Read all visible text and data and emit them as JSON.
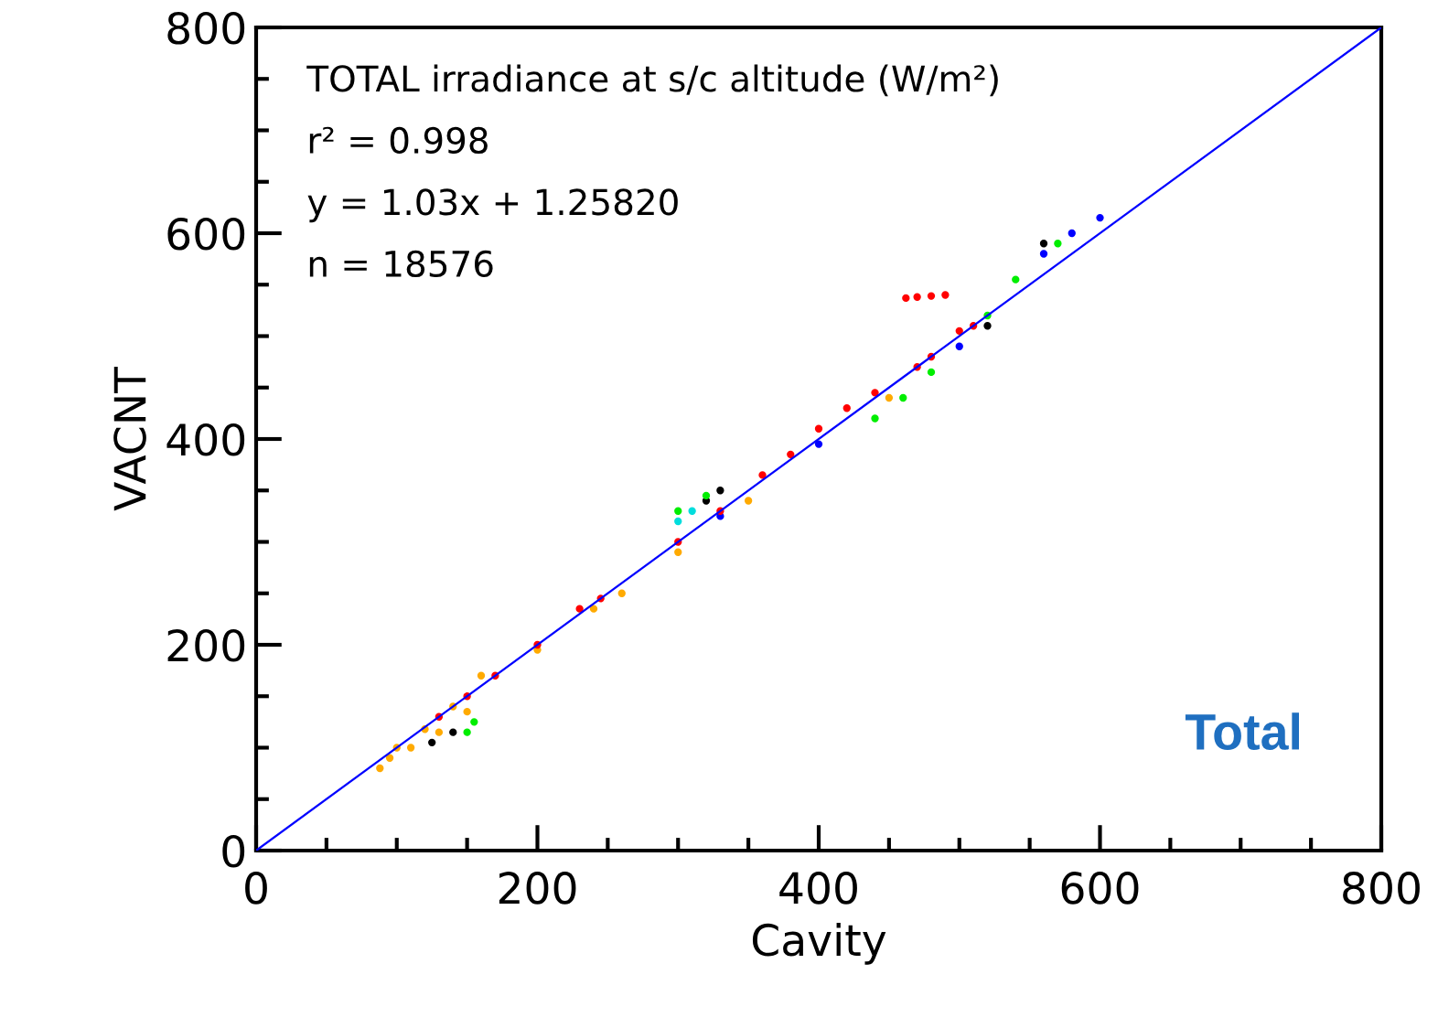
{
  "chart_data": {
    "type": "scatter",
    "xlabel": "Cavity",
    "ylabel": "VACNT",
    "xlim": [
      0,
      800
    ],
    "ylim": [
      0,
      800
    ],
    "xticks": [
      0,
      200,
      400,
      600,
      800
    ],
    "yticks": [
      0,
      200,
      400,
      600,
      800
    ],
    "grid": false,
    "legend": false,
    "marker": "circle",
    "annotations": [
      "TOTAL irradiance at s/c altitude (W/m²)",
      "r² = 0.998",
      "y = 1.03x + 1.25820",
      "n = 18576",
      "Total"
    ],
    "series": [
      {
        "color": "#ffaa00",
        "x": [
          88,
          95,
          110,
          130,
          150,
          100,
          120,
          140,
          160,
          200,
          240,
          260,
          300,
          350,
          450
        ],
        "values": [
          80,
          90,
          100,
          115,
          135,
          100,
          118,
          140,
          170,
          195,
          235,
          250,
          290,
          340,
          440
        ]
      },
      {
        "color": "#000000",
        "x": [
          125,
          140,
          320,
          330,
          520,
          560
        ],
        "values": [
          105,
          115,
          340,
          350,
          510,
          590
        ]
      },
      {
        "color": "#00ee00",
        "x": [
          150,
          155,
          300,
          320,
          440,
          460,
          480,
          520,
          540,
          570
        ],
        "values": [
          115,
          125,
          330,
          345,
          420,
          440,
          465,
          520,
          555,
          590
        ]
      },
      {
        "color": "#00dddd",
        "x": [
          300,
          310
        ],
        "values": [
          320,
          330
        ]
      },
      {
        "color": "#0000ff",
        "x": [
          330,
          400,
          500,
          560,
          580,
          600
        ],
        "values": [
          325,
          395,
          490,
          580,
          600,
          615
        ]
      },
      {
        "color": "#ff0000",
        "x": [
          130,
          150,
          170,
          200,
          230,
          245,
          300,
          330,
          360,
          380,
          400,
          420,
          440,
          470,
          480,
          500,
          510,
          462,
          470,
          480,
          490
        ],
        "values": [
          130,
          150,
          170,
          200,
          235,
          245,
          300,
          330,
          365,
          385,
          410,
          430,
          445,
          470,
          480,
          505,
          510,
          537,
          538,
          539,
          540
        ]
      },
      {
        "type": "line",
        "marker": "none",
        "color": "#0000ff",
        "x": [
          0,
          800
        ],
        "values": [
          0,
          800
        ]
      }
    ]
  }
}
